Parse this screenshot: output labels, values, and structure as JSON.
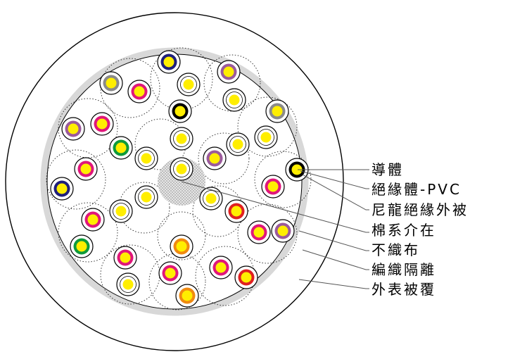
{
  "labels": {
    "conductor": "導體",
    "insulation": "絕緣體-PVC",
    "nylon_jacket": "尼龍絕緣外被",
    "cotton_filler": "棉系介在",
    "nonwoven": "不織布",
    "braid_shield": "編織隔離",
    "outer_sheath": "外表被覆"
  },
  "colors": {
    "conductor": "#ffee00",
    "conductor_light": "#fffbb0",
    "outer_ring": "#000000",
    "shield_ring": "#d8d8d8",
    "filler": "#c8c8c8",
    "stripe_colors": [
      "#1f1f7a",
      "#8a8a8a",
      "#9b5a9b",
      "#e0167a",
      "#0e9a3a",
      "#000000",
      "#e02020",
      "#f08a10",
      "#ffffff"
    ]
  },
  "wires": [
    {
      "ring": "#1f1f7a"
    },
    {
      "ring": "#8a8a8a"
    },
    {
      "ring": "#e0167a"
    },
    {
      "ring": "#ffffff"
    },
    {
      "ring": "#9b5a9b"
    },
    {
      "ring": "#ffffff"
    },
    {
      "ring": "#000000"
    },
    {
      "ring": "#8a8a8a"
    },
    {
      "ring": "#e0167a"
    },
    {
      "ring": "#9b5a9b"
    },
    {
      "ring": "#0e9a3a"
    },
    {
      "ring": "#ffffff"
    },
    {
      "ring": "#ffffff"
    },
    {
      "ring": "#9b5a9b"
    },
    {
      "ring": "#ffffff"
    },
    {
      "ring": "#ffffff"
    },
    {
      "ring": "#000000"
    },
    {
      "ring": "#e0167a"
    },
    {
      "ring": "#1f1f7a"
    },
    {
      "ring": "#ffffff"
    },
    {
      "ring": "#ffffff"
    },
    {
      "ring": "#ffffff"
    },
    {
      "ring": "#e02020"
    },
    {
      "ring": "#e0167a"
    },
    {
      "ring": "#9b5a9b"
    },
    {
      "ring": "#e0167a"
    },
    {
      "ring": "#ffffff"
    },
    {
      "ring": "#e0167a"
    },
    {
      "ring": "#0e9a3a"
    },
    {
      "ring": "#e0167a"
    },
    {
      "ring": "#f08a10"
    },
    {
      "ring": "#e0167a"
    },
    {
      "ring": "#e0167a"
    },
    {
      "ring": "#e02020"
    },
    {
      "ring": "#ffffff"
    },
    {
      "ring": "#f08a10"
    }
  ]
}
